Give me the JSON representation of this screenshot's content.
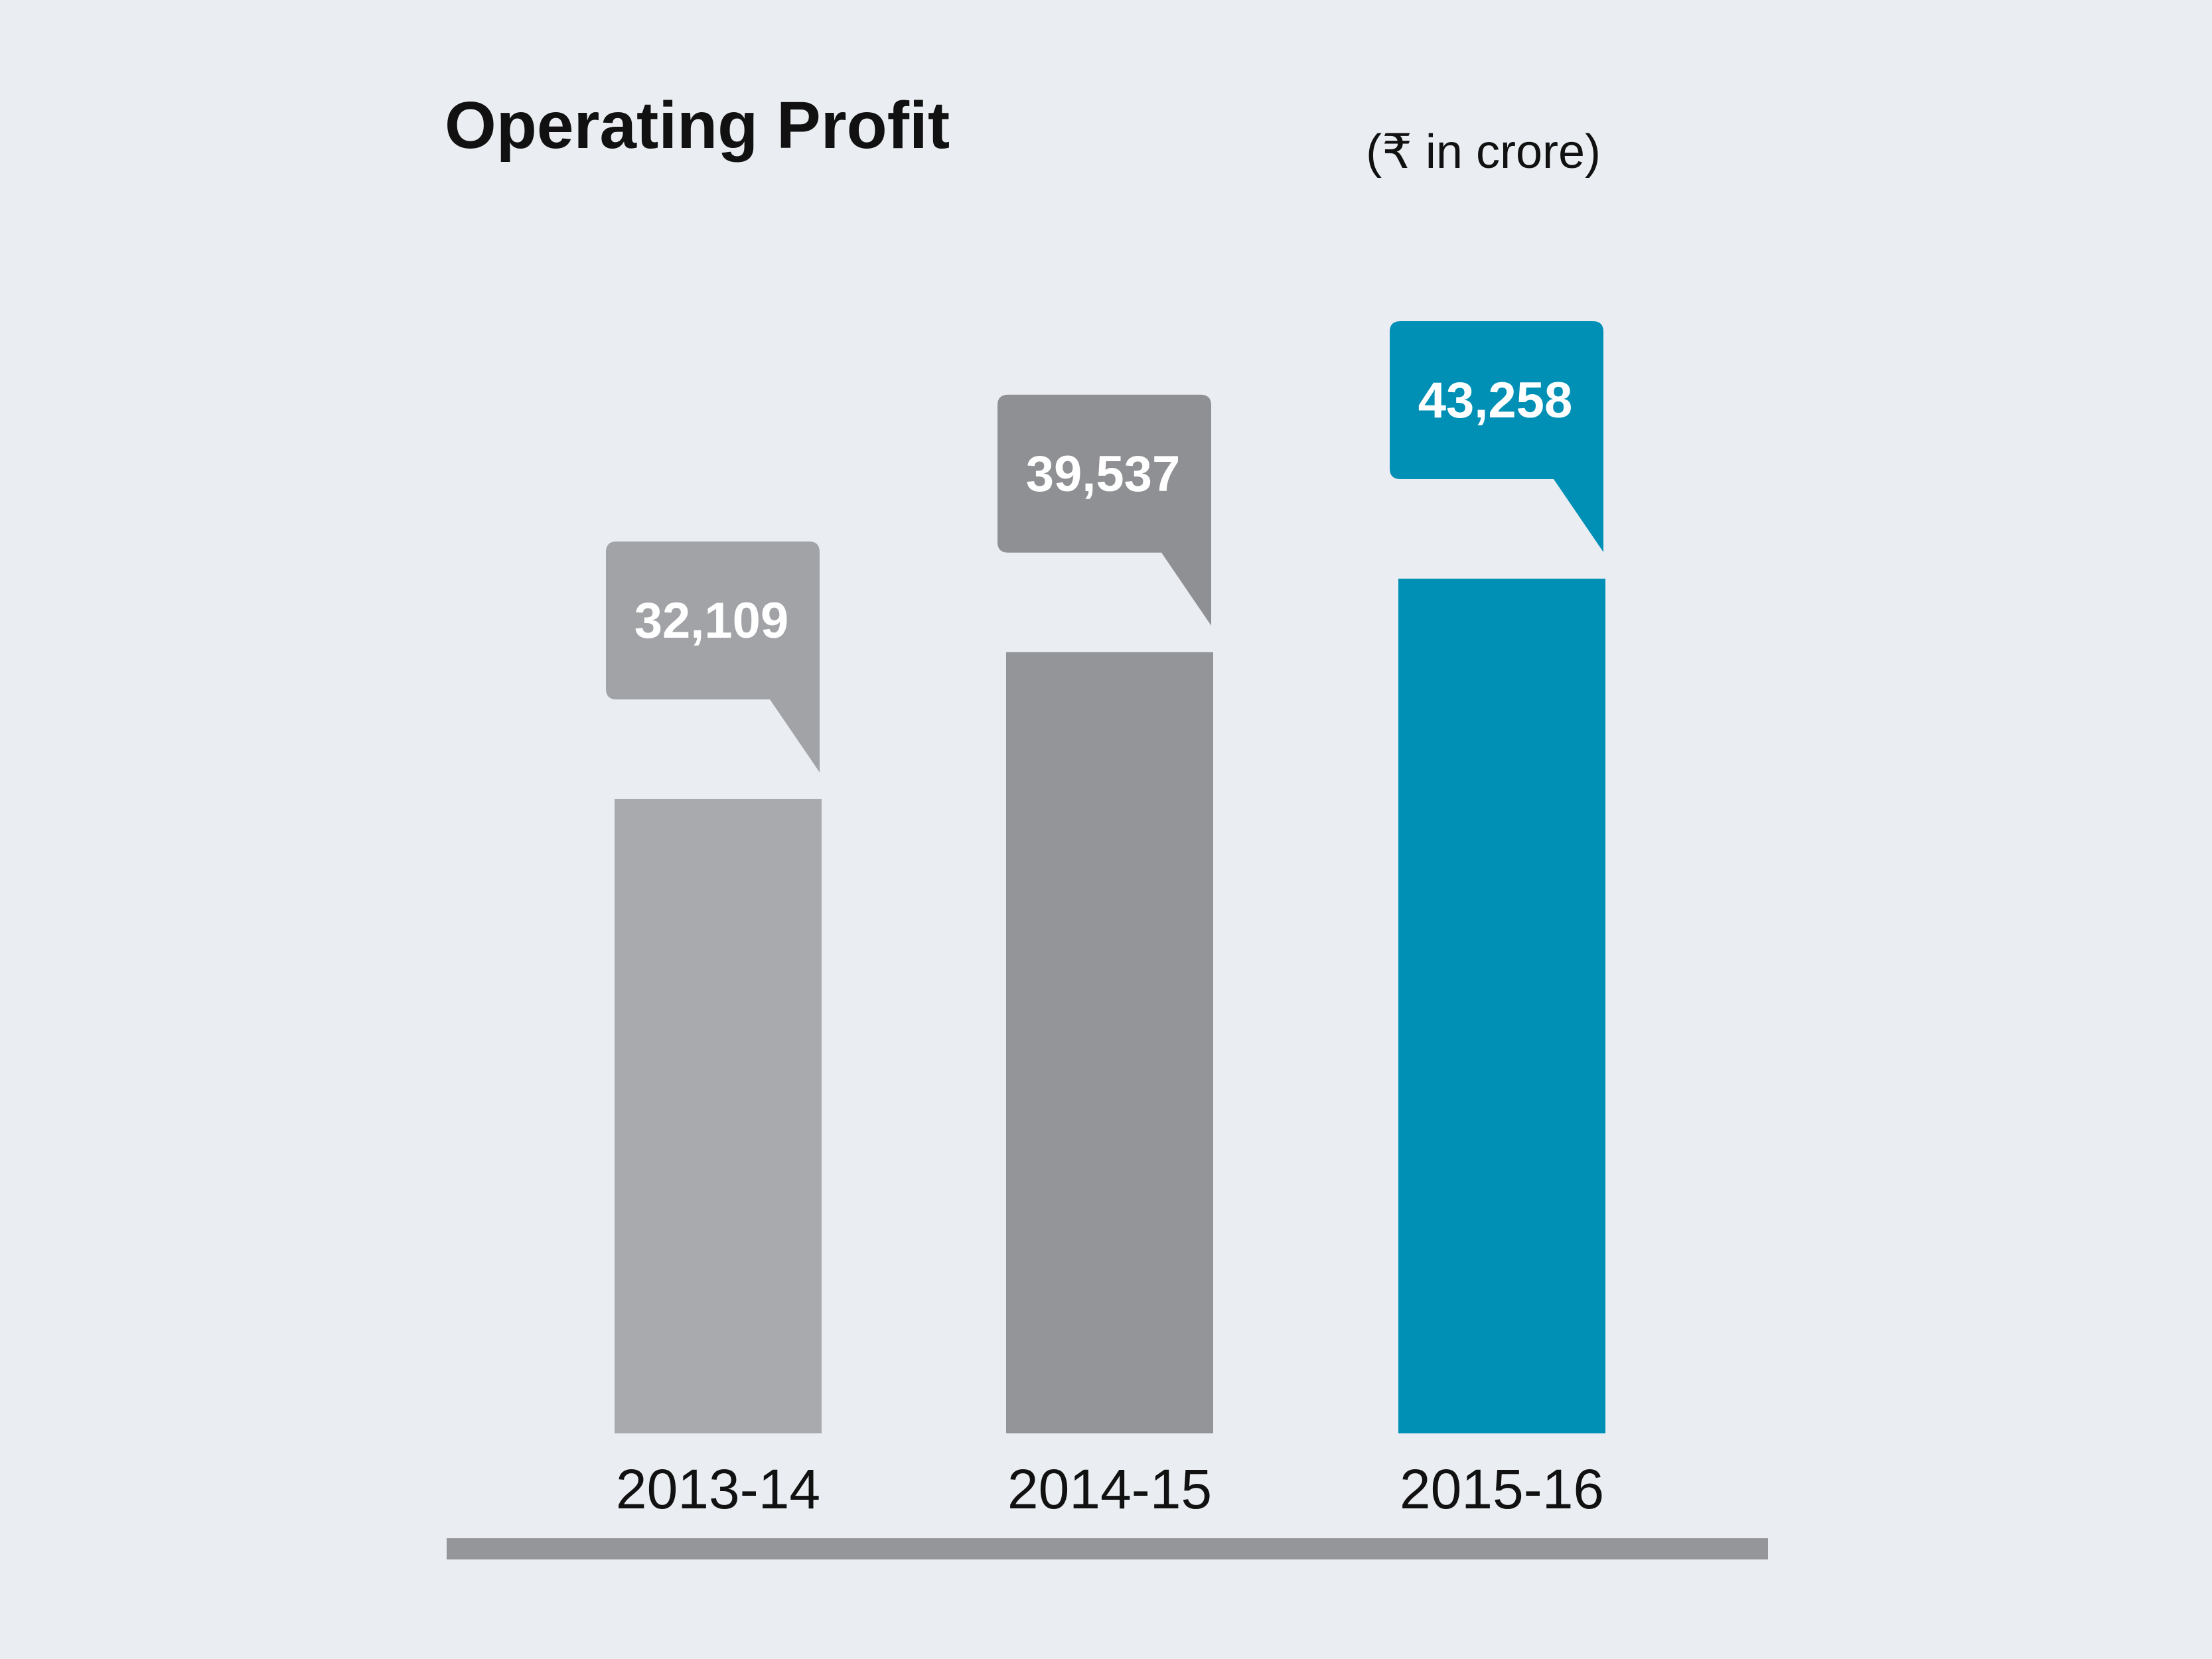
{
  "chart_data": {
    "type": "bar",
    "title": "Operating Profit",
    "unit_label": "(₹ in crore)",
    "categories": [
      "2013-14",
      "2014-15",
      "2015-16"
    ],
    "values": [
      32109,
      39537,
      43258
    ],
    "value_labels": [
      "32,109",
      "39,537",
      "43,258"
    ],
    "ylim": [
      0,
      43258
    ],
    "grid": false,
    "legend": "none"
  },
  "colors": {
    "background": "#eaeef2",
    "bars": [
      "#a9aaad",
      "#949599",
      "#0090b6"
    ],
    "callouts": [
      "#a2a3a6",
      "#8f9094",
      "#0090b6"
    ],
    "baseline": "#959699",
    "text": "#111111",
    "value_text": "#ffffff"
  }
}
